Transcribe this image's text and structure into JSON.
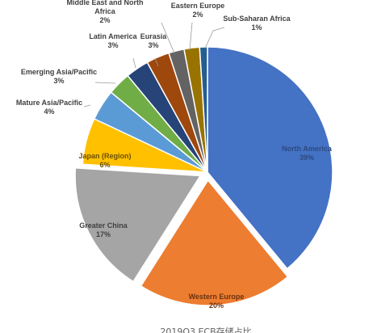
{
  "chart_data": {
    "type": "pie",
    "title": "2019Q3 ECB存储占比",
    "slices": [
      {
        "name": "North America",
        "label": "North America",
        "value": 39,
        "pct_label": "39%",
        "color": "#4472C4",
        "text_color": "#2E4A80",
        "exploded": false
      },
      {
        "name": "Western Europe",
        "label": "Western Europe",
        "value": 20,
        "pct_label": "20%",
        "color": "#ED7D31",
        "text_color": "#6B3210",
        "exploded": true
      },
      {
        "name": "Greater China",
        "label": "Greater China",
        "value": 17,
        "pct_label": "17%",
        "color": "#A5A5A5",
        "text_color": "#404040",
        "exploded": true
      },
      {
        "name": "Japan (Region)",
        "label": "Japan (Region)",
        "value": 6,
        "pct_label": "6%",
        "color": "#FFC000",
        "text_color": "#6B5000",
        "exploded": false
      },
      {
        "name": "Mature Asia/Pacific",
        "label": "Mature Asia/Pacific",
        "value": 4,
        "pct_label": "4%",
        "color": "#5B9BD5",
        "text_color": "#404040",
        "exploded": false
      },
      {
        "name": "Emerging Asia/Pacific",
        "label": "Emerging Asia/Pacific",
        "value": 3,
        "pct_label": "3%",
        "color": "#70AD47",
        "text_color": "#404040",
        "exploded": false
      },
      {
        "name": "Latin America",
        "label": "Latin America",
        "value": 3,
        "pct_label": "3%",
        "color": "#264478",
        "text_color": "#404040",
        "exploded": false
      },
      {
        "name": "Eurasia",
        "label": "Eurasia",
        "value": 3,
        "pct_label": "3%",
        "color": "#9E480E",
        "text_color": "#404040",
        "exploded": false
      },
      {
        "name": "Middle East and North Africa",
        "label": "Middle East and North Africa",
        "value": 2,
        "pct_label": "2%",
        "color": "#636363",
        "text_color": "#404040",
        "exploded": false
      },
      {
        "name": "Eastern Europe",
        "label": "Eastern Europe",
        "value": 2,
        "pct_label": "2%",
        "color": "#997300",
        "text_color": "#404040",
        "exploded": false
      },
      {
        "name": "Sub-Saharan Africa",
        "label": "Sub-Saharan Africa",
        "value": 1,
        "pct_label": "1%",
        "color": "#255E91",
        "text_color": "#404040",
        "exploded": false
      }
    ],
    "legend": "none",
    "data_labels": "category and percentage"
  }
}
